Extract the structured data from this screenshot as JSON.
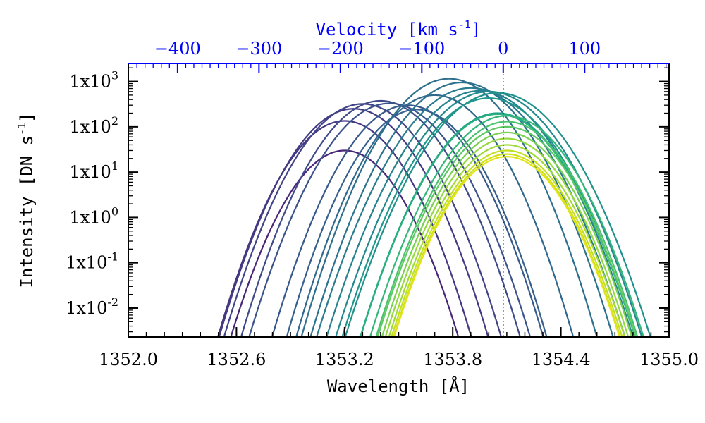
{
  "chart_data": {
    "type": "line",
    "xlabel": "Wavelength [Å]",
    "xlabel_parts": {
      "text": "Wavelength [Å]"
    },
    "ylabel_parts": {
      "main": "Intensity [DN s",
      "sup": "-1",
      "close": "]"
    },
    "top_xlabel_parts": {
      "main": "Velocity [km s",
      "sup": "-1",
      "close": "]"
    },
    "top_axis_color": "#0000ff",
    "rest_wavelength": 1354.08,
    "reference_line": {
      "x": 1354.08,
      "style": "dotted"
    },
    "xlim": [
      1352.0,
      1355.0
    ],
    "x_ticks": [
      "1352.0",
      "1352.6",
      "1353.2",
      "1353.8",
      "1354.4",
      "1355.0"
    ],
    "x_tick_values": [
      1352.0,
      1352.6,
      1353.2,
      1353.8,
      1354.4,
      1355.0
    ],
    "top_ticks": [
      "−400",
      "−300",
      "−200",
      "−100",
      "0",
      "100"
    ],
    "top_tick_values": [
      -400,
      -300,
      -200,
      -100,
      0,
      100
    ],
    "y_scale": "log",
    "ylim": [
      0.0023,
      2500
    ],
    "y_ticks": [
      {
        "base": "1x10",
        "exp": "-2",
        "value": 0.01
      },
      {
        "base": "1x10",
        "exp": "-1",
        "value": 0.1
      },
      {
        "base": "1x10",
        "exp": "0",
        "value": 1
      },
      {
        "base": "1x10",
        "exp": "1",
        "value": 10
      },
      {
        "base": "1x10",
        "exp": "2",
        "value": 100
      },
      {
        "base": "1x10",
        "exp": "3",
        "value": 1000
      }
    ],
    "series": [
      {
        "center": 1353.2,
        "peak": 30,
        "width": 0.145,
        "color": "#482677"
      },
      {
        "center": 1353.2,
        "peak": 135,
        "width": 0.15,
        "color": "#453781"
      },
      {
        "center": 1353.25,
        "peak": 250,
        "width": 0.155,
        "color": "#443a83"
      },
      {
        "center": 1353.3,
        "peak": 320,
        "width": 0.158,
        "color": "#414487"
      },
      {
        "center": 1353.4,
        "peak": 375,
        "width": 0.158,
        "color": "#3e4a89"
      },
      {
        "center": 1353.45,
        "peak": 330,
        "width": 0.16,
        "color": "#3b528b"
      },
      {
        "center": 1353.55,
        "peak": 300,
        "width": 0.155,
        "color": "#38598c"
      },
      {
        "center": 1353.6,
        "peak": 240,
        "width": 0.15,
        "color": "#355f8d"
      },
      {
        "center": 1353.7,
        "peak": 500,
        "width": 0.155,
        "color": "#31688e"
      },
      {
        "center": 1353.78,
        "peak": 1150,
        "width": 0.16,
        "color": "#2e6f8e"
      },
      {
        "center": 1353.85,
        "peak": 950,
        "width": 0.165,
        "color": "#2c728e"
      },
      {
        "center": 1353.9,
        "peak": 720,
        "width": 0.17,
        "color": "#297b8e"
      },
      {
        "center": 1353.95,
        "peak": 620,
        "width": 0.17,
        "color": "#26828e"
      },
      {
        "center": 1354.0,
        "peak": 600,
        "width": 0.17,
        "color": "#23898e"
      },
      {
        "center": 1354.05,
        "peak": 560,
        "width": 0.17,
        "color": "#21918c"
      },
      {
        "center": 1354.0,
        "peak": 430,
        "width": 0.165,
        "color": "#1f988b"
      },
      {
        "center": 1354.05,
        "peak": 200,
        "width": 0.16,
        "color": "#20a386"
      },
      {
        "center": 1354.05,
        "peak": 190,
        "width": 0.16,
        "color": "#2ab07f"
      },
      {
        "center": 1354.1,
        "peak": 175,
        "width": 0.16,
        "color": "#35b779"
      },
      {
        "center": 1354.1,
        "peak": 130,
        "width": 0.155,
        "color": "#4ac16d"
      },
      {
        "center": 1354.1,
        "peak": 100,
        "width": 0.155,
        "color": "#5ec962"
      },
      {
        "center": 1354.1,
        "peak": 75,
        "width": 0.152,
        "color": "#7ad151"
      },
      {
        "center": 1354.1,
        "peak": 55,
        "width": 0.15,
        "color": "#95d840"
      },
      {
        "center": 1354.1,
        "peak": 40,
        "width": 0.148,
        "color": "#a0da39"
      },
      {
        "center": 1354.1,
        "peak": 30,
        "width": 0.147,
        "color": "#c2df23"
      },
      {
        "center": 1354.1,
        "peak": 25,
        "width": 0.146,
        "color": "#d0e11c"
      },
      {
        "center": 1354.1,
        "peak": 22,
        "width": 0.146,
        "color": "#e2e418"
      }
    ]
  }
}
